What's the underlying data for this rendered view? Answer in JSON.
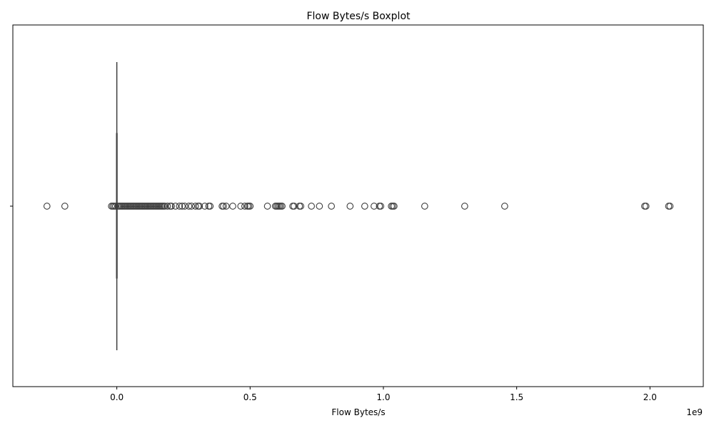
{
  "chart_data": {
    "type": "boxplot",
    "title": "Flow Bytes/s Boxplot",
    "xlabel": "Flow Bytes/s",
    "ylabel": "",
    "x_offset_text": "1e9",
    "xlim": [
      -0.39,
      2.2
    ],
    "x_scale_multiplier": 1000000000,
    "x_ticks": [
      {
        "value": 0.0,
        "label": "0.0"
      },
      {
        "value": 0.5,
        "label": "0.5"
      },
      {
        "value": 1.0,
        "label": "1.0"
      },
      {
        "value": 1.5,
        "label": "1.5"
      },
      {
        "value": 2.0,
        "label": "2.0"
      }
    ],
    "y_ticks": [
      {
        "label": ""
      }
    ],
    "grid": false,
    "box": {
      "q1": 0.0,
      "median": 0.0,
      "q3": 0.0,
      "whisker_low": 0.0,
      "whisker_high": 0.0
    },
    "outliers": [
      -0.262,
      -0.195,
      -0.02,
      -0.015,
      -0.01,
      -0.005,
      0.005,
      0.01,
      0.015,
      0.02,
      0.025,
      0.03,
      0.035,
      0.04,
      0.045,
      0.05,
      0.055,
      0.06,
      0.065,
      0.07,
      0.075,
      0.08,
      0.085,
      0.09,
      0.095,
      0.1,
      0.105,
      0.11,
      0.115,
      0.12,
      0.125,
      0.13,
      0.135,
      0.14,
      0.145,
      0.15,
      0.155,
      0.16,
      0.165,
      0.17,
      0.175,
      0.18,
      0.19,
      0.2,
      0.205,
      0.22,
      0.235,
      0.245,
      0.255,
      0.27,
      0.28,
      0.295,
      0.305,
      0.31,
      0.33,
      0.345,
      0.35,
      0.395,
      0.4,
      0.41,
      0.435,
      0.465,
      0.48,
      0.49,
      0.495,
      0.5,
      0.565,
      0.595,
      0.6,
      0.605,
      0.61,
      0.615,
      0.62,
      0.66,
      0.665,
      0.685,
      0.69,
      0.73,
      0.76,
      0.805,
      0.875,
      0.93,
      0.965,
      0.985,
      0.99,
      1.03,
      1.035,
      1.04,
      1.155,
      1.305,
      1.455,
      1.98,
      1.985,
      2.07,
      2.075
    ],
    "colors": {
      "outlier_edge": "#3d3d3d",
      "box_line": "#3d3d3d",
      "axis": "#000000"
    }
  }
}
